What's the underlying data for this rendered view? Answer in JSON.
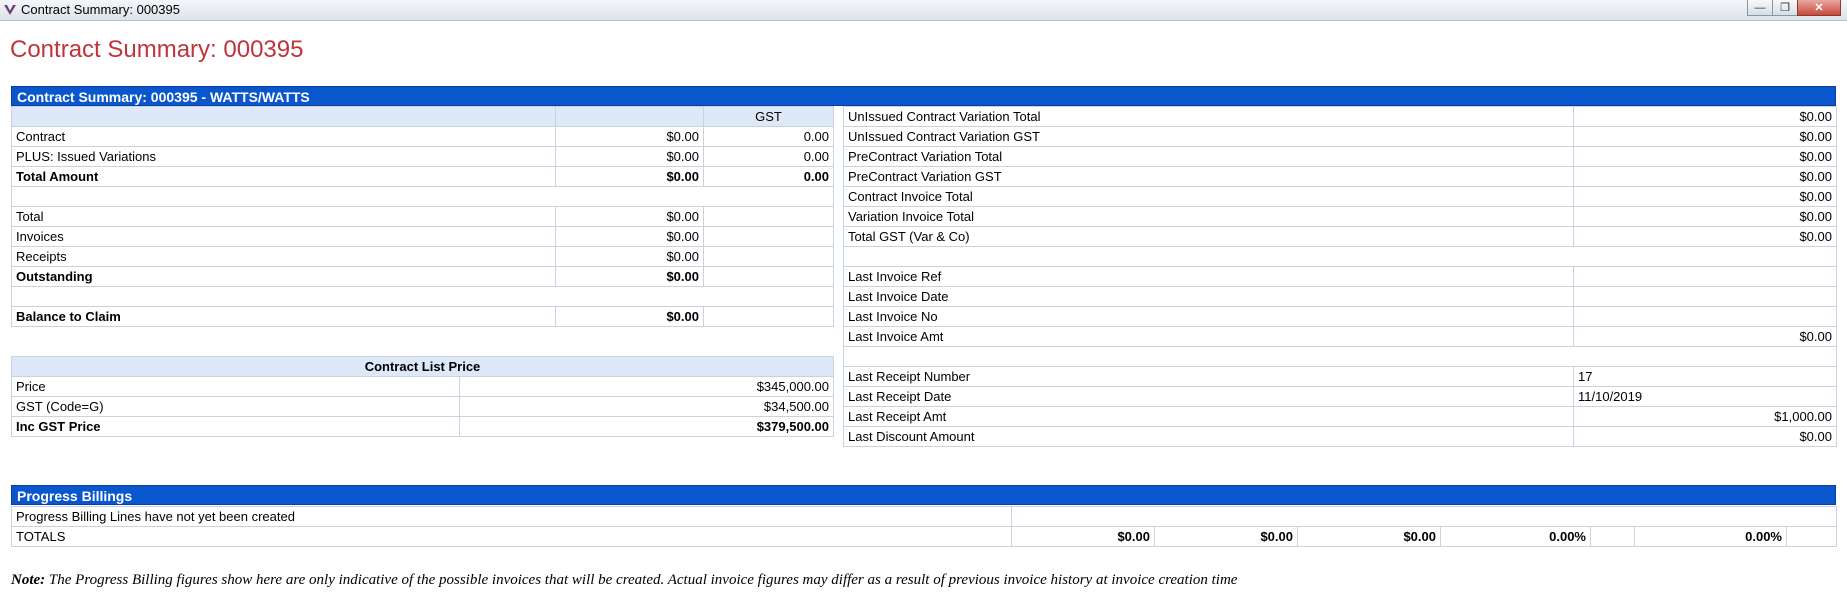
{
  "window": {
    "title": "Contract Summary: 000395"
  },
  "page": {
    "title": "Contract Summary: 000395"
  },
  "summary": {
    "header": "Contract Summary: 000395 - WATTS/WATTS",
    "gst_header": "GST",
    "rows": [
      {
        "label": "Contract",
        "amount": "$0.00",
        "gst": "0.00"
      },
      {
        "label": "PLUS: Issued Variations",
        "amount": "$0.00",
        "gst": "0.00"
      },
      {
        "label": "Total Amount",
        "amount": "$0.00",
        "gst": "0.00"
      }
    ],
    "rows2": [
      {
        "label": "Total",
        "amount": "$0.00"
      },
      {
        "label": "Invoices",
        "amount": "$0.00"
      },
      {
        "label": "Receipts",
        "amount": "$0.00"
      },
      {
        "label": "Outstanding",
        "amount": "$0.00"
      }
    ],
    "balance": {
      "label": "Balance to Claim",
      "amount": "$0.00"
    }
  },
  "list_price": {
    "header": "Contract List Price",
    "rows": [
      {
        "label": "Price",
        "value": "$345,000.00"
      },
      {
        "label": "GST (Code=G)",
        "value": "$34,500.00"
      },
      {
        "label": "Inc GST Price",
        "value": "$379,500.00"
      }
    ]
  },
  "right": {
    "block1": [
      {
        "label": "UnIssued Contract Variation Total",
        "value": "$0.00"
      },
      {
        "label": "UnIssued Contract Variation GST",
        "value": "$0.00"
      },
      {
        "label": "PreContract Variation Total",
        "value": "$0.00"
      },
      {
        "label": "PreContract Variation GST",
        "value": "$0.00"
      },
      {
        "label": "Contract Invoice Total",
        "value": "$0.00"
      },
      {
        "label": "Variation Invoice Total",
        "value": "$0.00"
      },
      {
        "label": "Total GST (Var & Co)",
        "value": "$0.00"
      }
    ],
    "block2": [
      {
        "label": "Last Invoice Ref",
        "value": ""
      },
      {
        "label": "Last Invoice Date",
        "value": ""
      },
      {
        "label": "Last Invoice No",
        "value": ""
      },
      {
        "label": "Last Invoice Amt",
        "value": "$0.00"
      }
    ],
    "block3": [
      {
        "label": "Last Receipt Number",
        "value": "17"
      },
      {
        "label": "Last Receipt Date",
        "value": "11/10/2019"
      },
      {
        "label": "Last Receipt Amt",
        "value": "$1,000.00"
      },
      {
        "label": "Last Discount Amount",
        "value": "$0.00"
      }
    ]
  },
  "progress": {
    "header": "Progress Billings",
    "empty_message": "Progress Billing Lines have not yet been created",
    "totals_label": "TOTALS",
    "totals": [
      "$0.00",
      "$0.00",
      "$0.00",
      "0.00%",
      "",
      "0.00%",
      ""
    ]
  },
  "note": {
    "prefix": "Note:",
    "text": " The Progress Billing figures show here are only indicative of the possible invoices that will be created. Actual invoice figures may differ as a result of previous invoice history at invoice creation time"
  },
  "colors": {
    "header_blue": "#0a56cc",
    "title_red": "#c0343c",
    "row_header_bg": "#dde9f8"
  }
}
